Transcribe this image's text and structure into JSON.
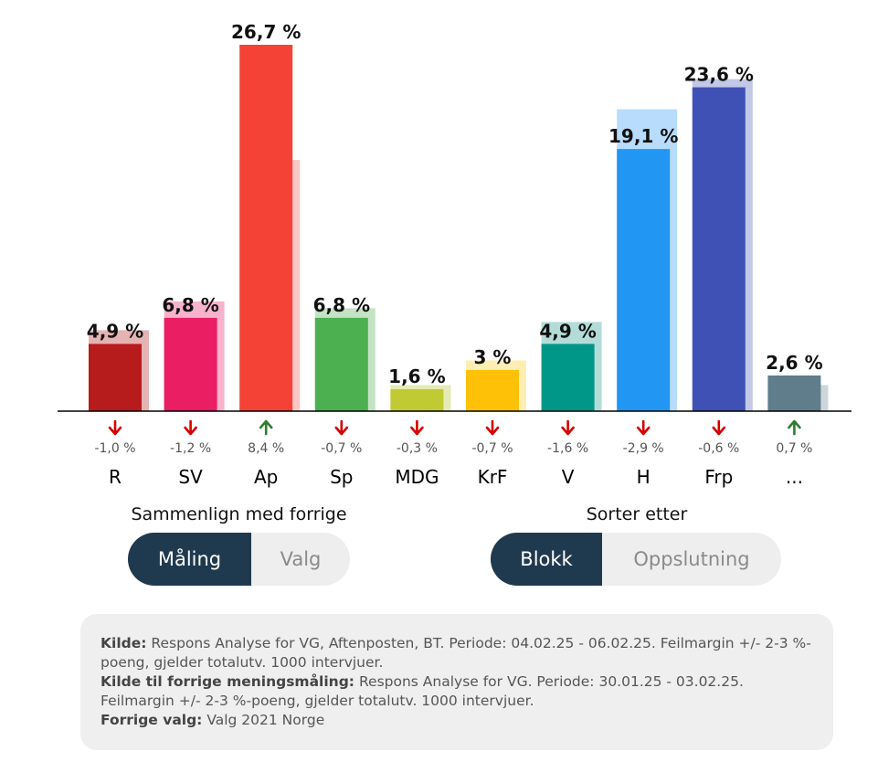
{
  "chart_data": {
    "type": "bar",
    "categories": [
      "R",
      "SV",
      "Ap",
      "Sp",
      "MDG",
      "KrF",
      "V",
      "H",
      "Frp",
      "..."
    ],
    "series": [
      {
        "values": [
          4.9,
          6.8,
          26.7,
          6.8,
          1.6,
          3,
          4.9,
          19.1,
          23.6,
          2.6
        ]
      },
      {
        "values": [
          5.9,
          8.0,
          18.3,
          7.5,
          1.9,
          3.7,
          6.5,
          22.0,
          24.2,
          1.9
        ]
      }
    ],
    "value_labels": [
      "4,9 %",
      "6,8 %",
      "26,7 %",
      "6,8 %",
      "1,6 %",
      "3 %",
      "4,9 %",
      "19,1 %",
      "23,6 %",
      "2,6 %"
    ],
    "changes": [
      "-1,0 %",
      "-1,2 %",
      "8,4 %",
      "-0,7 %",
      "-0,3 %",
      "-0,7 %",
      "-1,6 %",
      "-2,9 %",
      "-0,6 %",
      "0,7 %"
    ],
    "change_direction": [
      "down",
      "down",
      "up",
      "down",
      "down",
      "down",
      "down",
      "down",
      "down",
      "up"
    ],
    "colors": [
      "#b71c1c",
      "#e91e63",
      "#f44336",
      "#4caf50",
      "#c0ca33",
      "#ffc107",
      "#009688",
      "#2196f3",
      "#3f51b5",
      "#607d8b"
    ],
    "prev_colors": [
      "#e6b3b3",
      "#f7b3cb",
      "#fac8c4",
      "#c3e3c4",
      "#e5ebb3",
      "#ffeeb3",
      "#b3dcd8",
      "#b8dcfb",
      "#c2c8e6",
      "#cdd6da"
    ],
    "arrow_colors": {
      "down": "#d50000",
      "up": "#2e7d32"
    },
    "ylim": [
      0,
      28
    ],
    "xlabel": "",
    "ylabel": ""
  },
  "controls": {
    "compare": {
      "title": "Sammenlign med forrige",
      "options": [
        "Måling",
        "Valg"
      ],
      "active": "Måling"
    },
    "sort": {
      "title": "Sorter etter",
      "options": [
        "Blokk",
        "Oppslutning"
      ],
      "active": "Blokk"
    }
  },
  "source": {
    "line1_label": "Kilde:",
    "line1_text": "Respons Analyse for VG, Aftenposten, BT. Periode: 04.02.25 - 06.02.25. Feilmargin +/- 2-3 %-poeng, gjelder totalutv. 1000 intervjuer.",
    "line2_label": "Kilde til forrige meningsmåling:",
    "line2_text": "Respons Analyse for VG. Periode: 30.01.25 - 03.02.25. Feilmargin +/- 2-3 %-poeng, gjelder totalutv. 1000 intervjuer.",
    "line3_label": "Forrige valg:",
    "line3_text": "Valg 2021 Norge"
  }
}
